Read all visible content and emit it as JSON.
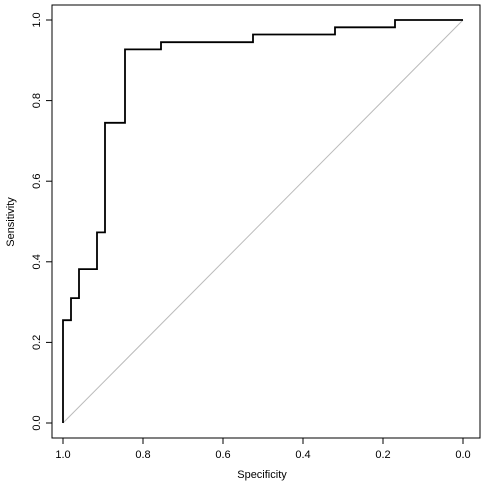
{
  "chart_data": {
    "type": "line",
    "title": "",
    "xlabel": "Specificity",
    "ylabel": "Sensitivity",
    "xlim": [
      1.0,
      0.0
    ],
    "ylim": [
      0.0,
      1.0
    ],
    "x_reversed": true,
    "x_ticks": [
      "1.0",
      "0.8",
      "0.6",
      "0.4",
      "0.2",
      "0.0"
    ],
    "x_tick_values": [
      1.0,
      0.8,
      0.6,
      0.4,
      0.2,
      0.0
    ],
    "y_ticks": [
      "0.0",
      "0.2",
      "0.4",
      "0.6",
      "0.8",
      "1.0"
    ],
    "y_tick_values": [
      0.0,
      0.2,
      0.4,
      0.6,
      0.8,
      1.0
    ],
    "grid": false,
    "reference_line": {
      "from": [
        1.0,
        0.0
      ],
      "to": [
        0.0,
        1.0
      ],
      "color": "#bbbbbb"
    },
    "series": [
      {
        "color": "#000000",
        "x": [
          1.0,
          1.0,
          0.98,
          0.98,
          0.96,
          0.96,
          0.915,
          0.915,
          0.895,
          0.895,
          0.845,
          0.845,
          0.755,
          0.755,
          0.525,
          0.525,
          0.32,
          0.32,
          0.17,
          0.17,
          0.0
        ],
        "y": [
          0.0,
          0.255,
          0.255,
          0.31,
          0.31,
          0.382,
          0.382,
          0.473,
          0.473,
          0.745,
          0.745,
          0.927,
          0.927,
          0.945,
          0.945,
          0.964,
          0.964,
          0.982,
          0.982,
          1.0,
          1.0
        ]
      }
    ]
  }
}
